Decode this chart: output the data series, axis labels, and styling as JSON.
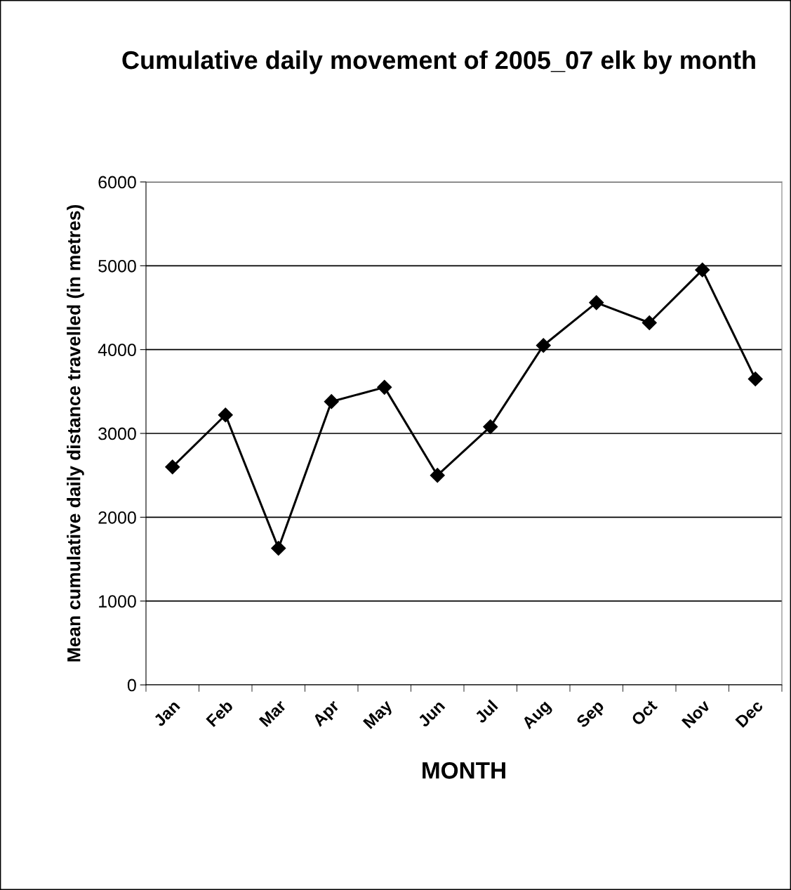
{
  "chart_data": {
    "type": "line",
    "title": "Cumulative daily movement of 2005_07 elk by month",
    "xlabel": "MONTH",
    "ylabel": "Mean cumulative daily distance travelled (in metres)",
    "categories": [
      "Jan",
      "Feb",
      "Mar",
      "Apr",
      "May",
      "Jun",
      "Jul",
      "Aug",
      "Sep",
      "Oct",
      "Nov",
      "Dec"
    ],
    "series": [
      {
        "color": "#000000",
        "values": [
          2600,
          3220,
          1630,
          3380,
          3550,
          2500,
          3080,
          4050,
          4560,
          4320,
          4950,
          3650
        ]
      }
    ],
    "ylim": [
      0,
      6000
    ],
    "yticks": [
      0,
      1000,
      2000,
      3000,
      4000,
      5000,
      6000
    ],
    "grid": "y",
    "marker": "diamond",
    "line_style": "solid",
    "legend": false
  }
}
